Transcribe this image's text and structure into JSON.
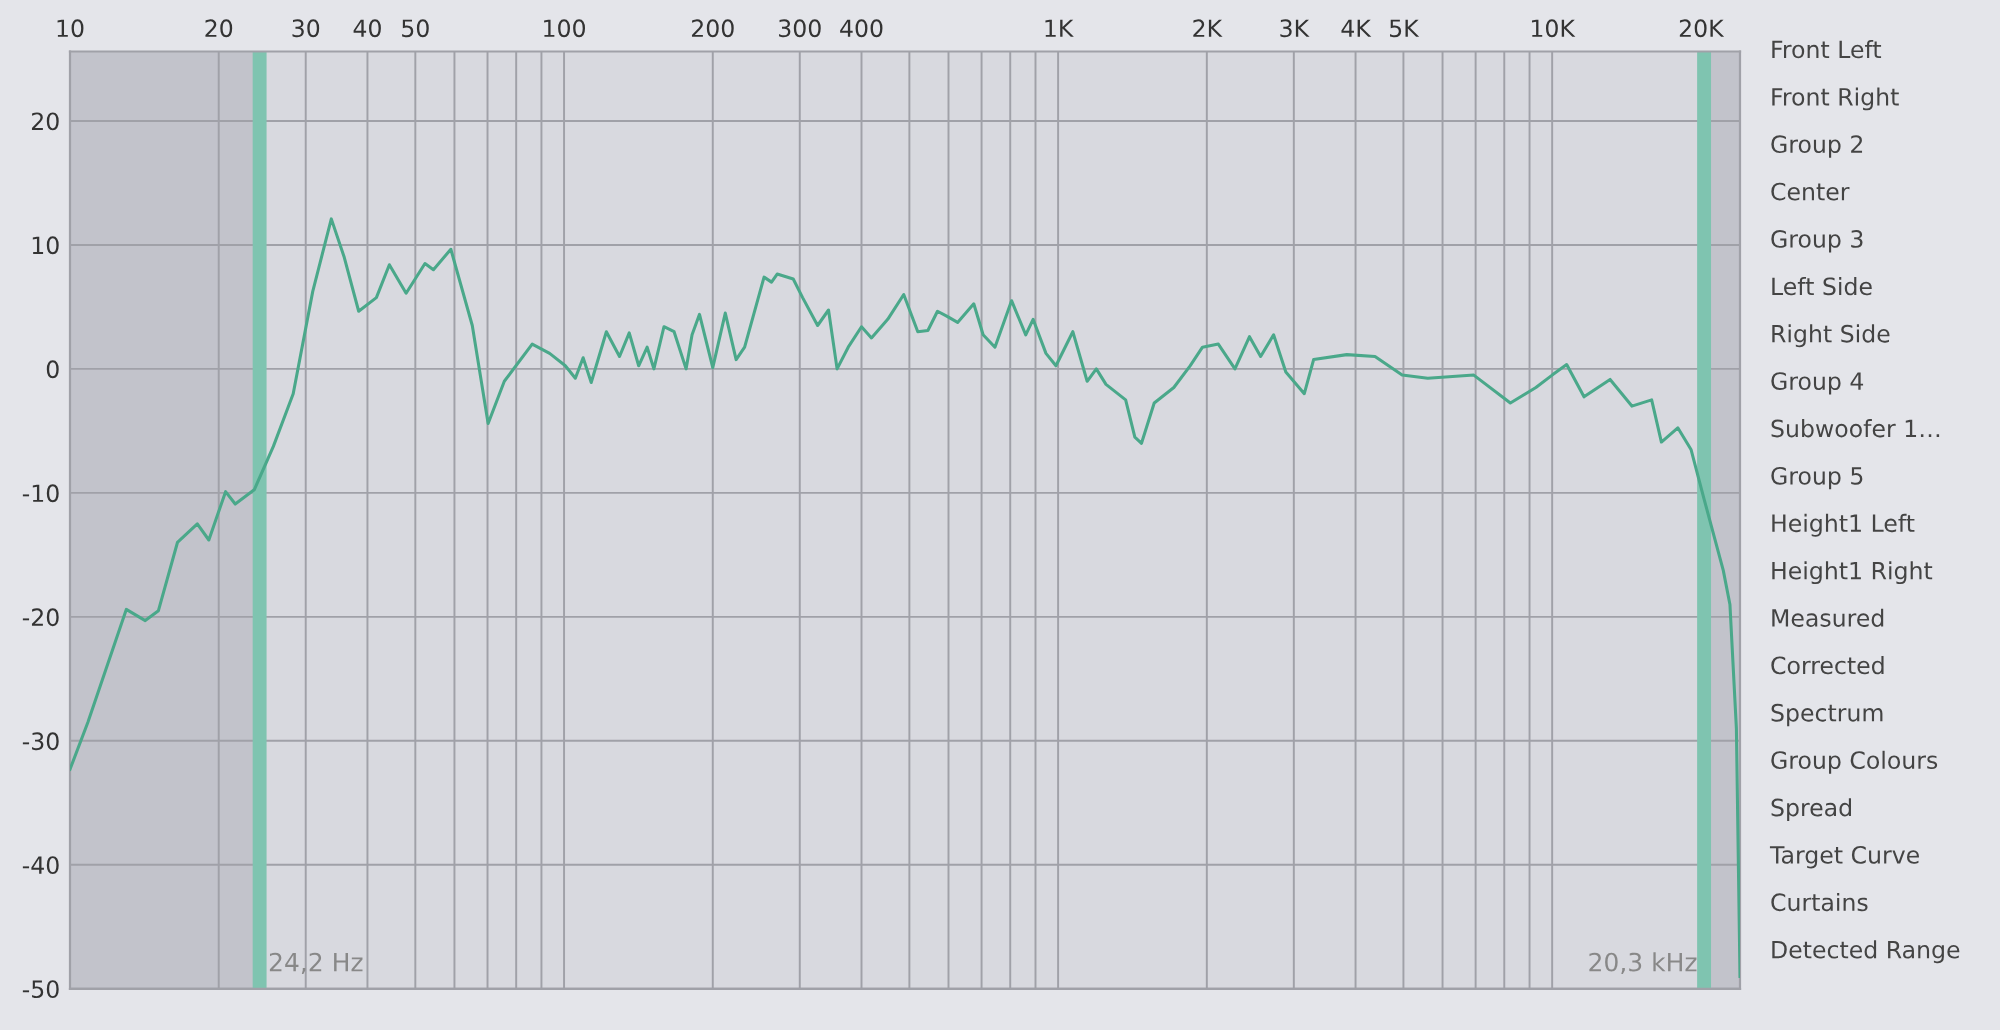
{
  "chart_data": {
    "type": "line",
    "x": [
      10,
      10.87,
      13.0,
      14.2,
      15.1,
      16.5,
      18.1,
      19.1,
      20.65,
      21.6,
      23.6,
      25.8,
      28.3,
      31.0,
      33.8,
      35.9,
      38.4,
      41.7,
      44.3,
      47.9,
      52.3,
      54.4,
      59.0,
      65.2,
      70.2,
      75.7,
      86.2,
      93.5,
      100.6,
      105.4,
      109.3,
      113.5,
      121.8,
      129.5,
      135.5,
      141.6,
      147.3,
      152,
      159.3,
      167,
      176.6,
      181.6,
      188,
      200,
      212,
      223,
      232,
      254,
      263,
      270,
      291,
      304,
      326,
      343,
      357,
      376,
      400,
      419,
      452,
      487,
      520,
      545,
      570,
      595,
      626,
      675,
      705,
      745,
      805,
      860,
      890,
      945,
      990,
      1071,
      1145,
      1195,
      1250,
      1370,
      1430,
      1475,
      1565,
      1715,
      1850,
      1960,
      2110,
      2280,
      2440,
      2570,
      2730,
      2890,
      3150,
      3290,
      3840,
      4380,
      4970,
      5600,
      6940,
      8230,
      9270,
      10000,
      10700,
      11600,
      13100,
      14500,
      15900,
      16640,
      17960,
      19100,
      20300,
      22200,
      22900,
      23600,
      24000
    ],
    "series": [
      {
        "color": "#4aa88a",
        "values": [
          -32.3,
          -28.5,
          -19.4,
          -20.3,
          -19.5,
          -14.0,
          -12.5,
          -13.8,
          -9.9,
          -10.9,
          -9.75,
          -6.25,
          -2.0,
          6.25,
          12.1,
          9.0,
          4.65,
          5.75,
          8.4,
          6.1,
          8.5,
          8.0,
          9.65,
          3.5,
          -4.4,
          -1.0,
          2.0,
          1.25,
          0.25,
          -0.75,
          0.9,
          -1.1,
          3.0,
          1.0,
          2.9,
          0.25,
          1.75,
          0,
          3.4,
          3.0,
          0,
          2.75,
          4.4,
          0.1,
          4.5,
          0.75,
          1.75,
          7.4,
          7.0,
          7.65,
          7.25,
          5.75,
          3.5,
          4.75,
          0,
          1.75,
          3.4,
          2.5,
          4.0,
          6.0,
          3.0,
          3.1,
          4.65,
          4.25,
          3.75,
          5.25,
          2.75,
          1.75,
          5.5,
          2.75,
          4.0,
          1.25,
          0.25,
          3.0,
          -1.0,
          0,
          -1.25,
          -2.5,
          -5.5,
          -6.0,
          -2.75,
          -1.5,
          0.25,
          1.75,
          2.0,
          0,
          2.6,
          1.0,
          2.75,
          -0.25,
          -2.0,
          0.75,
          1.15,
          1.0,
          -0.5,
          -0.75,
          -0.5,
          -2.75,
          -1.5,
          -0.5,
          0.35,
          -2.25,
          -0.85,
          -3.0,
          -2.5,
          -5.9,
          -4.75,
          -6.5,
          -10.5,
          -16.25,
          -19.0,
          -29.0,
          -49
        ]
      }
    ],
    "log": "x",
    "xlim": [
      10,
      24000
    ],
    "ylim": [
      -50,
      25.6
    ],
    "xticks": [
      10,
      20,
      30,
      40,
      50,
      {
        "value": 60,
        "label": null
      },
      {
        "value": 70,
        "label": null
      },
      {
        "value": 80,
        "label": null
      },
      {
        "value": 90,
        "label": null
      },
      100,
      200,
      300,
      400,
      {
        "value": 500,
        "label": null
      },
      {
        "value": 600,
        "label": null
      },
      {
        "value": 700,
        "label": null
      },
      {
        "value": 800,
        "label": null
      },
      {
        "value": 900,
        "label": null
      },
      {
        "value": 1000,
        "label": "1K"
      },
      {
        "value": 2000,
        "label": "2K"
      },
      {
        "value": 3000,
        "label": "3K"
      },
      {
        "value": 4000,
        "label": "4K"
      },
      {
        "value": 5000,
        "label": "5K"
      },
      {
        "value": 6000,
        "label": null
      },
      {
        "value": 7000,
        "label": null
      },
      {
        "value": 8000,
        "label": null
      },
      {
        "value": 9000,
        "label": null
      },
      {
        "value": 10000,
        "label": "10K"
      },
      {
        "value": 20000,
        "label": "20K"
      }
    ],
    "yticks": [
      -50,
      -40,
      -30,
      -20,
      -10,
      0,
      10,
      20
    ],
    "grid": true,
    "marker": "none",
    "line_style": "solid",
    "bands": [
      {
        "axis": "x",
        "from": 10,
        "to": 24.2,
        "color": "#c2c3cb"
      },
      {
        "axis": "x",
        "from": 20300,
        "to": 24000,
        "color": "#c2c3cb"
      }
    ],
    "ref_lines": [
      {
        "axis": "x",
        "value": 24.2,
        "label": "24,2 Hz",
        "color": "#7fc4b0"
      },
      {
        "axis": "x",
        "value": 20300,
        "label": "20,3 kHz",
        "color": "#7fc4b0"
      }
    ],
    "annotations": [
      "Front Left",
      "Front Right",
      "Group 2",
      "Center",
      "Group 3",
      "Left Side",
      "Right Side",
      "Group 4",
      "Subwoofer 1…",
      "Group 5",
      "Height1 Left",
      "Height1 Right",
      "Measured",
      "Corrected",
      "Spectrum",
      "Group Colours",
      "Spread",
      "Target Curve",
      "Curtains",
      "Detected Range"
    ]
  }
}
